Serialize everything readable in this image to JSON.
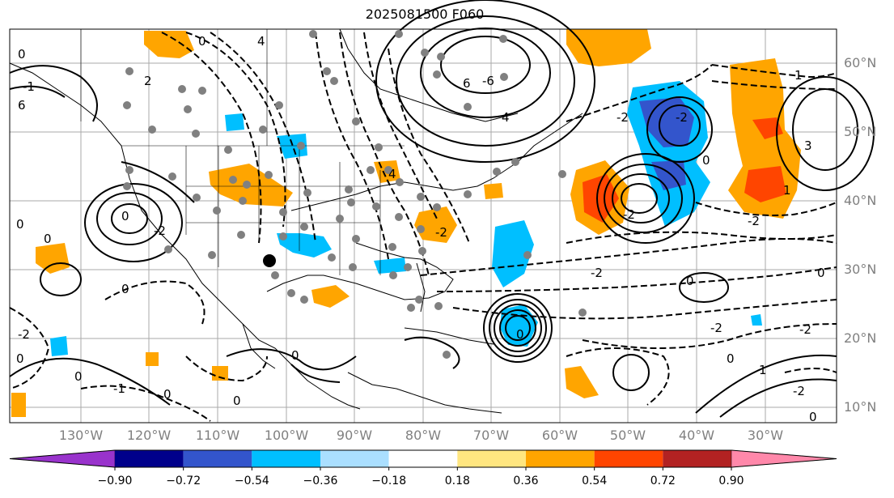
{
  "title": "2025081500 F060",
  "lat_labels": [
    "60°N",
    "50°N",
    "40°N",
    "30°N",
    "20°N",
    "10°N"
  ],
  "lon_labels": [
    "130°W",
    "120°W",
    "110°W",
    "100°W",
    "90°W",
    "80°W",
    "70°W",
    "60°W",
    "50°W",
    "40°W",
    "30°W"
  ],
  "colorbar": {
    "ticks": [
      "−0.90",
      "−0.72",
      "−0.54",
      "−0.36",
      "−0.18",
      "0.18",
      "0.36",
      "0.54",
      "0.72",
      "0.90"
    ],
    "colors": [
      "#9933cc",
      "#00008b",
      "#3355cc",
      "#00bfff",
      "#aadfff",
      "#ffffff",
      "#ffe680",
      "#ffa500",
      "#ff4500",
      "#b22222",
      "#ff88aa"
    ]
  },
  "contour_labels": [
    "0",
    "2",
    "4",
    "6",
    "-2",
    "-4",
    "-6",
    "1",
    "-1",
    "3"
  ],
  "colors": {
    "orange": "#ffa500",
    "red": "#ff4500",
    "cyan": "#00bfff",
    "blue": "#3355cc",
    "gray_dot": "#808080"
  }
}
